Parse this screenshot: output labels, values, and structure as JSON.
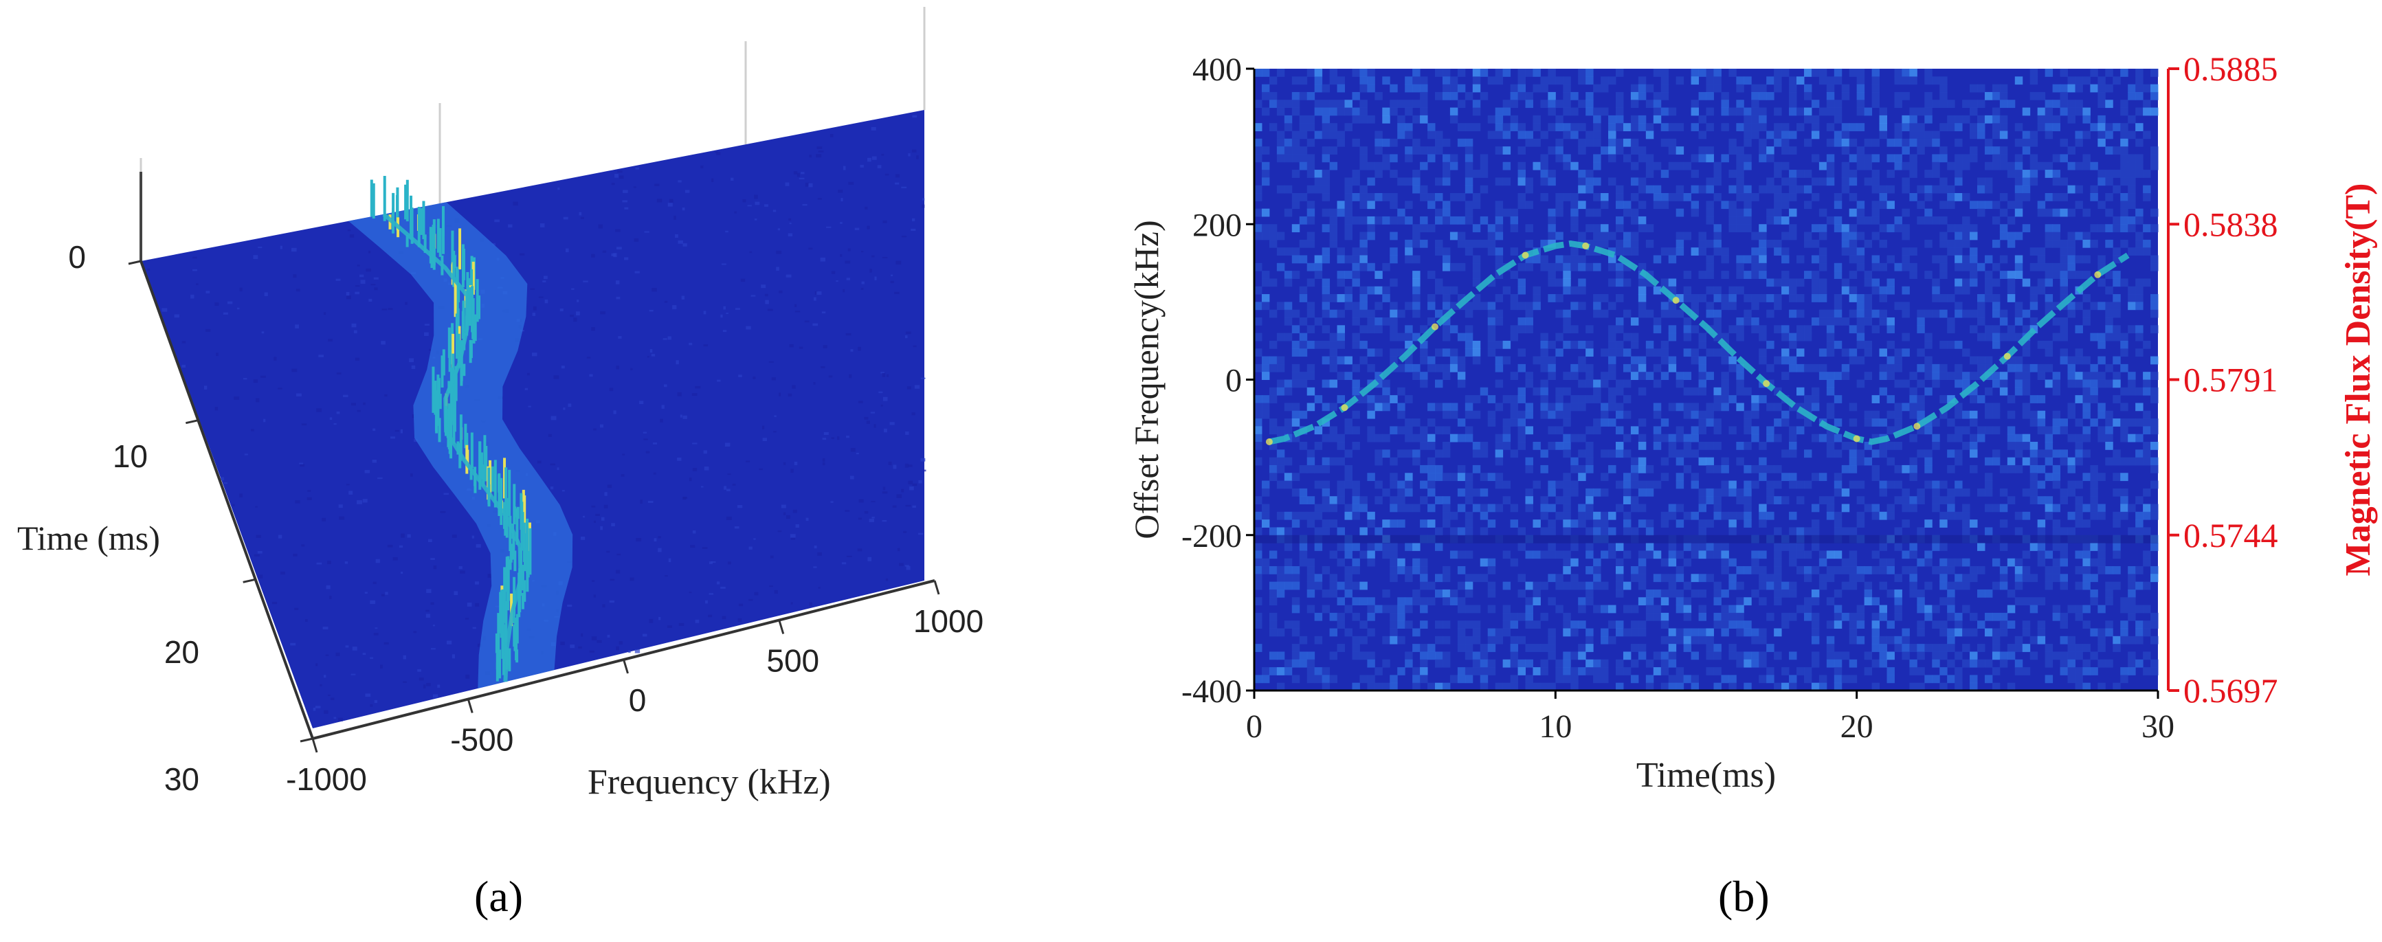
{
  "colors": {
    "background_low": "#1c2bb4",
    "background_high": "#2e6fe0",
    "peak_mid": "#2bb3c8",
    "peak_high": "#e6e05a",
    "right_axis": "#e5141c",
    "axis": "#000000"
  },
  "captions": {
    "a": "(a)",
    "b": "(b)"
  },
  "chart_data": [
    {
      "type": "surface",
      "panel": "a",
      "xlabel": "Frequency (kHz)",
      "ylabel": "Time (ms)",
      "xlim": [
        -1000,
        1000
      ],
      "ylim": [
        0,
        30
      ],
      "xticks": [
        "-1000",
        "-500",
        "0",
        "500",
        "1000"
      ],
      "yticks": [
        "0",
        "10",
        "20",
        "30"
      ],
      "ridge": {
        "time_ms": [
          0,
          2,
          4,
          6,
          8,
          10,
          12,
          14,
          16,
          18,
          20,
          22,
          24,
          26,
          28,
          30
        ],
        "frequency_khz": [
          -380,
          -320,
          -260,
          -220,
          -240,
          -280,
          -340,
          -360,
          -330,
          -290,
          -250,
          -230,
          -250,
          -300,
          -340,
          -370
        ]
      },
      "grid": true
    },
    {
      "type": "heatmap",
      "panel": "b",
      "xlabel": "Time(ms)",
      "ylabel": "Offset Frequency(kHz)",
      "ylabel_right": "Magnetic Flux Density(T)",
      "xlim": [
        0,
        30
      ],
      "ylim": [
        -400,
        400
      ],
      "xticks": [
        "0",
        "10",
        "20",
        "30"
      ],
      "yticks": [
        "400",
        "200",
        "0",
        "-200",
        "-400"
      ],
      "yticks_right": [
        "0.5885",
        "0.5838",
        "0.5791",
        "0.5744",
        "0.5697"
      ],
      "trace": {
        "time_ms": [
          0.5,
          1,
          2,
          3,
          4,
          5,
          6,
          7,
          8,
          9,
          10,
          10.5,
          11,
          12,
          13,
          14,
          15,
          16,
          17,
          18,
          19,
          20,
          20.5,
          21,
          22,
          23,
          24,
          25,
          26,
          27,
          28,
          29
        ],
        "offset_khz": [
          -80,
          -76,
          -60,
          -36,
          -5,
          30,
          68,
          102,
          135,
          160,
          172,
          175,
          172,
          160,
          135,
          102,
          68,
          30,
          -5,
          -36,
          -60,
          -76,
          -80,
          -76,
          -60,
          -36,
          -5,
          30,
          68,
          102,
          135,
          160
        ]
      }
    }
  ]
}
